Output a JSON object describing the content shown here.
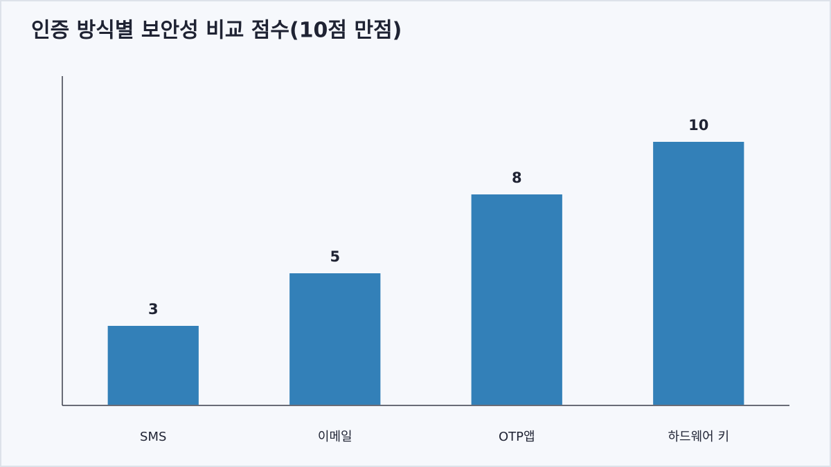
{
  "chart_data": {
    "type": "bar",
    "title": "인증 방식별 보안성 비교 점수(10점 만점)",
    "categories": [
      "SMS",
      "이메일",
      "OTP앱",
      "하드웨어 키"
    ],
    "values": [
      3,
      5,
      8,
      10
    ],
    "color": "#3380b8",
    "ylim": [
      0,
      12.5
    ],
    "grid": false
  }
}
